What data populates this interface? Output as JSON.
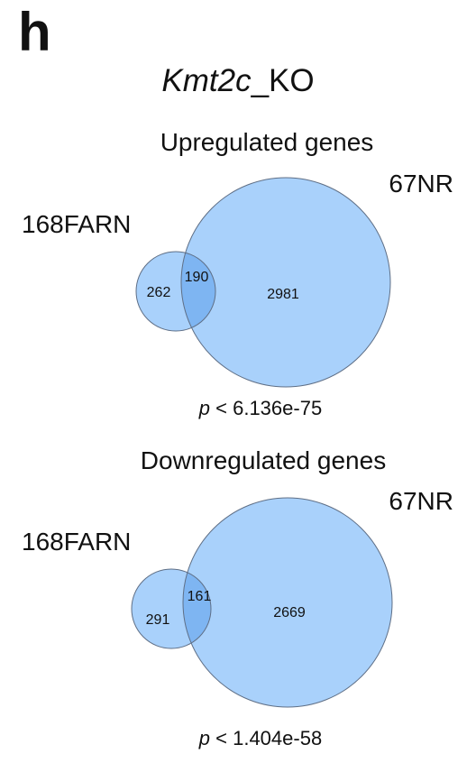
{
  "panel_label": "h",
  "title": {
    "gene": "Kmt2c",
    "suffix": "_KO"
  },
  "colors": {
    "circle_fill": "#a9d1fb",
    "overlap_fill": "#7eb5f2",
    "circle_stroke": "#5f6f86"
  },
  "venns": [
    {
      "subtitle": "Upregulated genes",
      "left_set": {
        "label": "168FARN",
        "only_count": "262"
      },
      "right_set": {
        "label": "67NR",
        "only_count": "2981"
      },
      "overlap_count": "190",
      "p_symbol": "p",
      "p_text": " < 6.136e-75"
    },
    {
      "subtitle": "Downregulated genes",
      "left_set": {
        "label": "168FARN",
        "only_count": "291"
      },
      "right_set": {
        "label": "67NR",
        "only_count": "2669"
      },
      "overlap_count": "161",
      "p_symbol": "p",
      "p_text": " < 1.404e-58"
    }
  ]
}
